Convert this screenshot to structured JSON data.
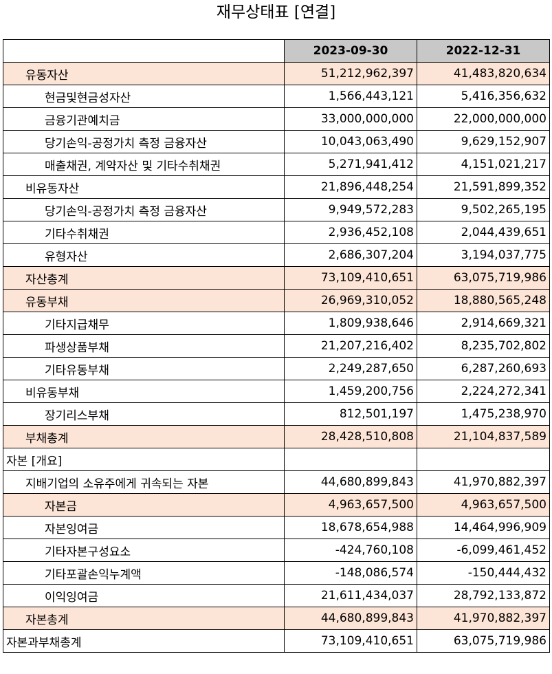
{
  "title": "재무상태표 [연결]",
  "columns": [
    "2023-09-30",
    "2022-12-31"
  ],
  "rows": [
    {
      "label": "유동자산",
      "level": 1,
      "highlight": true,
      "v1": "51,212,962,397",
      "v2": "41,483,820,634"
    },
    {
      "label": "현금및현금성자산",
      "level": 2,
      "highlight": false,
      "v1": "1,566,443,121",
      "v2": "5,416,356,632"
    },
    {
      "label": "금융기관예치금",
      "level": 2,
      "highlight": false,
      "v1": "33,000,000,000",
      "v2": "22,000,000,000"
    },
    {
      "label": "당기손익-공정가치 측정 금융자산",
      "level": 2,
      "highlight": false,
      "v1": "10,043,063,490",
      "v2": "9,629,152,907"
    },
    {
      "label": "매출채권, 계약자산 및 기타수취채권",
      "level": 2,
      "highlight": false,
      "v1": "5,271,941,412",
      "v2": "4,151,021,217"
    },
    {
      "label": "비유동자산",
      "level": 1,
      "highlight": false,
      "v1": "21,896,448,254",
      "v2": "21,591,899,352"
    },
    {
      "label": "당기손익-공정가치 측정 금융자산",
      "level": 2,
      "highlight": false,
      "v1": "9,949,572,283",
      "v2": "9,502,265,195"
    },
    {
      "label": "기타수취채권",
      "level": 2,
      "highlight": false,
      "v1": "2,936,452,108",
      "v2": "2,044,439,651"
    },
    {
      "label": "유형자산",
      "level": 2,
      "highlight": false,
      "v1": "2,686,307,204",
      "v2": "3,194,037,775"
    },
    {
      "label": "자산총계",
      "level": 1,
      "highlight": true,
      "v1": "73,109,410,651",
      "v2": "63,075,719,986"
    },
    {
      "label": "유동부채",
      "level": 1,
      "highlight": true,
      "v1": "26,969,310,052",
      "v2": "18,880,565,248"
    },
    {
      "label": "기타지급채무",
      "level": 2,
      "highlight": false,
      "v1": "1,809,938,646",
      "v2": "2,914,669,321"
    },
    {
      "label": "파생상품부채",
      "level": 2,
      "highlight": false,
      "v1": "21,207,216,402",
      "v2": "8,235,702,802"
    },
    {
      "label": "기타유동부채",
      "level": 2,
      "highlight": false,
      "v1": "2,249,287,650",
      "v2": "6,287,260,693"
    },
    {
      "label": "비유동부채",
      "level": 1,
      "highlight": false,
      "v1": "1,459,200,756",
      "v2": "2,224,272,341"
    },
    {
      "label": "장기리스부채",
      "level": 2,
      "highlight": false,
      "v1": "812,501,197",
      "v2": "1,475,238,970"
    },
    {
      "label": "부채총계",
      "level": 1,
      "highlight": true,
      "v1": "28,428,510,808",
      "v2": "21,104,837,589"
    },
    {
      "label": "자본 [개요]",
      "level": 0,
      "highlight": false,
      "v1": "",
      "v2": ""
    },
    {
      "label": "지배기업의 소유주에게 귀속되는 자본",
      "level": 1,
      "highlight": false,
      "v1": "44,680,899,843",
      "v2": "41,970,882,397"
    },
    {
      "label": "자본금",
      "level": 2,
      "highlight": true,
      "v1": "4,963,657,500",
      "v2": "4,963,657,500"
    },
    {
      "label": "자본잉여금",
      "level": 2,
      "highlight": false,
      "v1": "18,678,654,988",
      "v2": "14,464,996,909"
    },
    {
      "label": "기타자본구성요소",
      "level": 2,
      "highlight": false,
      "v1": "-424,760,108",
      "v2": "-6,099,461,452"
    },
    {
      "label": "기타포괄손익누계액",
      "level": 2,
      "highlight": false,
      "v1": "-148,086,574",
      "v2": "-150,444,432"
    },
    {
      "label": "이익잉여금",
      "level": 2,
      "highlight": false,
      "v1": "21,611,434,037",
      "v2": "28,792,133,872"
    },
    {
      "label": "자본총계",
      "level": 1,
      "highlight": true,
      "v1": "44,680,899,843",
      "v2": "41,970,882,397"
    },
    {
      "label": "자본과부채총계",
      "level": 0,
      "highlight": false,
      "v1": "73,109,410,651",
      "v2": "63,075,719,986"
    }
  ]
}
